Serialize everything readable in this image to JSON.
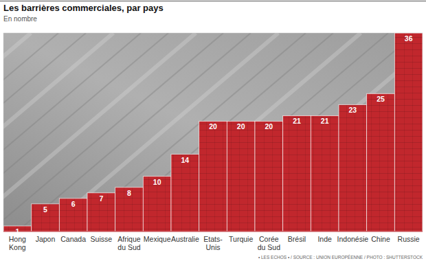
{
  "chart_data": {
    "type": "bar",
    "title": "Les barrières commerciales, par pays",
    "subtitle": "En nombre",
    "source": "• LES ECHOS • / SOURCE : UNION EUROPÉENNE / PHOTO : SHUTTERSTOCK",
    "categories": [
      "Hong Kong",
      "Japon",
      "Canada",
      "Suisse",
      "Afrique du Sud",
      "Mexique",
      "Australie",
      "Etats-Unis",
      "Turquie",
      "Corée du Sud",
      "Brésil",
      "Inde",
      "Indonésie",
      "Chine",
      "Russie"
    ],
    "values": [
      1,
      5,
      6,
      7,
      8,
      10,
      14,
      20,
      20,
      20,
      21,
      21,
      23,
      25,
      36
    ],
    "color": "#c1272d",
    "ylim": [
      0,
      36
    ],
    "data_labels": true,
    "tick_labels": "x",
    "grid": false
  }
}
